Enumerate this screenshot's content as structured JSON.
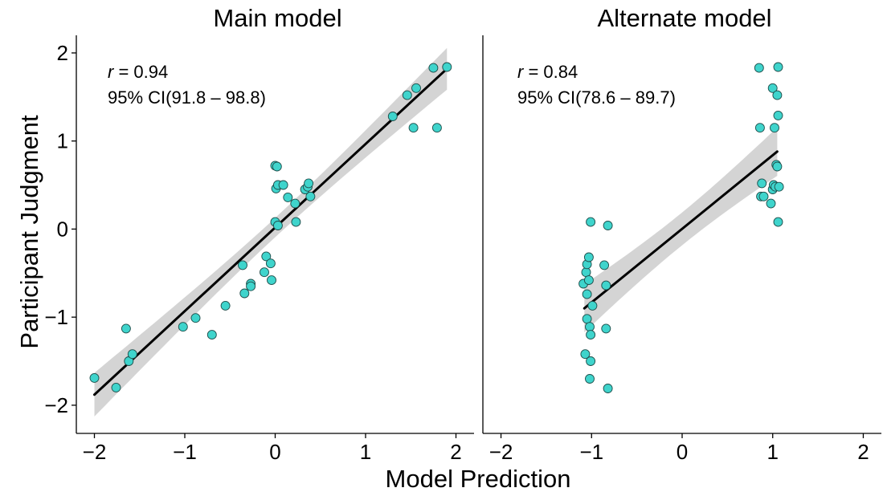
{
  "chart_data": {
    "type": "scatter",
    "xlabel": "Model Prediction",
    "ylabel": "Participant Judgment",
    "xlim": [
      -2.2,
      2.2
    ],
    "ylim": [
      -2.32,
      2.2
    ],
    "xticks": [
      "−2",
      "−1",
      "0",
      "1",
      "2"
    ],
    "yticks": [
      "−2",
      "−1",
      "0",
      "1",
      "2"
    ],
    "point_color": "#3fd4cc",
    "ribbon_color": "#d4d4d4",
    "line_color": "#000000",
    "grid": false,
    "panels": [
      {
        "title": "Main model",
        "annotation": {
          "r_label": "r",
          "r_value": " = 0.94",
          "ci": "95% CI(91.8 – 98.8)"
        },
        "fit": {
          "x": [
            -2.0,
            1.9
          ],
          "y": [
            -1.88,
            1.82
          ]
        },
        "points": [
          [
            -2.0,
            -1.69
          ],
          [
            -1.76,
            -1.8
          ],
          [
            -1.65,
            -1.13
          ],
          [
            -1.62,
            -1.5
          ],
          [
            -1.58,
            -1.42
          ],
          [
            -1.02,
            -1.11
          ],
          [
            -0.88,
            -1.01
          ],
          [
            -0.7,
            -1.2
          ],
          [
            -0.55,
            -0.87
          ],
          [
            -0.36,
            -0.41
          ],
          [
            -0.34,
            -0.73
          ],
          [
            -0.27,
            -0.62
          ],
          [
            -0.27,
            -0.65
          ],
          [
            -0.1,
            -0.31
          ],
          [
            -0.12,
            -0.49
          ],
          [
            -0.05,
            -0.39
          ],
          [
            -0.04,
            -0.58
          ],
          [
            0.0,
            0.72
          ],
          [
            0.02,
            0.71
          ],
          [
            0.01,
            0.46
          ],
          [
            0.03,
            0.5
          ],
          [
            0.09,
            0.5
          ],
          [
            0.0,
            0.08
          ],
          [
            0.03,
            0.04
          ],
          [
            0.14,
            0.36
          ],
          [
            0.22,
            0.29
          ],
          [
            0.23,
            0.08
          ],
          [
            0.33,
            0.45
          ],
          [
            0.36,
            0.48
          ],
          [
            0.37,
            0.52
          ],
          [
            0.39,
            0.37
          ],
          [
            1.3,
            1.28
          ],
          [
            1.46,
            1.52
          ],
          [
            1.53,
            1.15
          ],
          [
            1.56,
            1.6
          ],
          [
            1.75,
            1.83
          ],
          [
            1.79,
            1.15
          ],
          [
            1.9,
            1.84
          ]
        ]
      },
      {
        "title": "Alternate model",
        "annotation": {
          "r_label": "r",
          "r_value": " = 0.84",
          "ci": "95% CI(78.6 – 89.7)"
        },
        "fit": {
          "x": [
            -1.08,
            1.05
          ],
          "y": [
            -0.9,
            0.88
          ]
        },
        "points": [
          [
            -1.09,
            -0.62
          ],
          [
            -1.07,
            -1.42
          ],
          [
            -1.06,
            -0.49
          ],
          [
            -1.05,
            -0.4
          ],
          [
            -1.05,
            -0.74
          ],
          [
            -1.05,
            -1.02
          ],
          [
            -1.03,
            -0.32
          ],
          [
            -1.03,
            -0.58
          ],
          [
            -1.02,
            -1.11
          ],
          [
            -1.01,
            -1.2
          ],
          [
            -1.01,
            -1.5
          ],
          [
            -1.02,
            -1.7
          ],
          [
            -1.01,
            0.08
          ],
          [
            -0.99,
            -0.87
          ],
          [
            -0.86,
            -0.41
          ],
          [
            -0.84,
            -0.64
          ],
          [
            -0.84,
            -1.13
          ],
          [
            -0.82,
            0.04
          ],
          [
            -0.82,
            -1.81
          ],
          [
            0.85,
            1.83
          ],
          [
            0.86,
            1.15
          ],
          [
            0.87,
            0.37
          ],
          [
            0.88,
            0.52
          ],
          [
            0.9,
            0.37
          ],
          [
            0.98,
            0.29
          ],
          [
            1.0,
            1.6
          ],
          [
            1.0,
            0.45
          ],
          [
            1.01,
            0.5
          ],
          [
            1.02,
            1.15
          ],
          [
            1.03,
            0.48
          ],
          [
            1.04,
            0.73
          ],
          [
            1.05,
            1.52
          ],
          [
            1.05,
            0.71
          ],
          [
            1.06,
            1.84
          ],
          [
            1.06,
            1.29
          ],
          [
            1.06,
            0.08
          ],
          [
            1.07,
            0.48
          ]
        ]
      }
    ]
  }
}
